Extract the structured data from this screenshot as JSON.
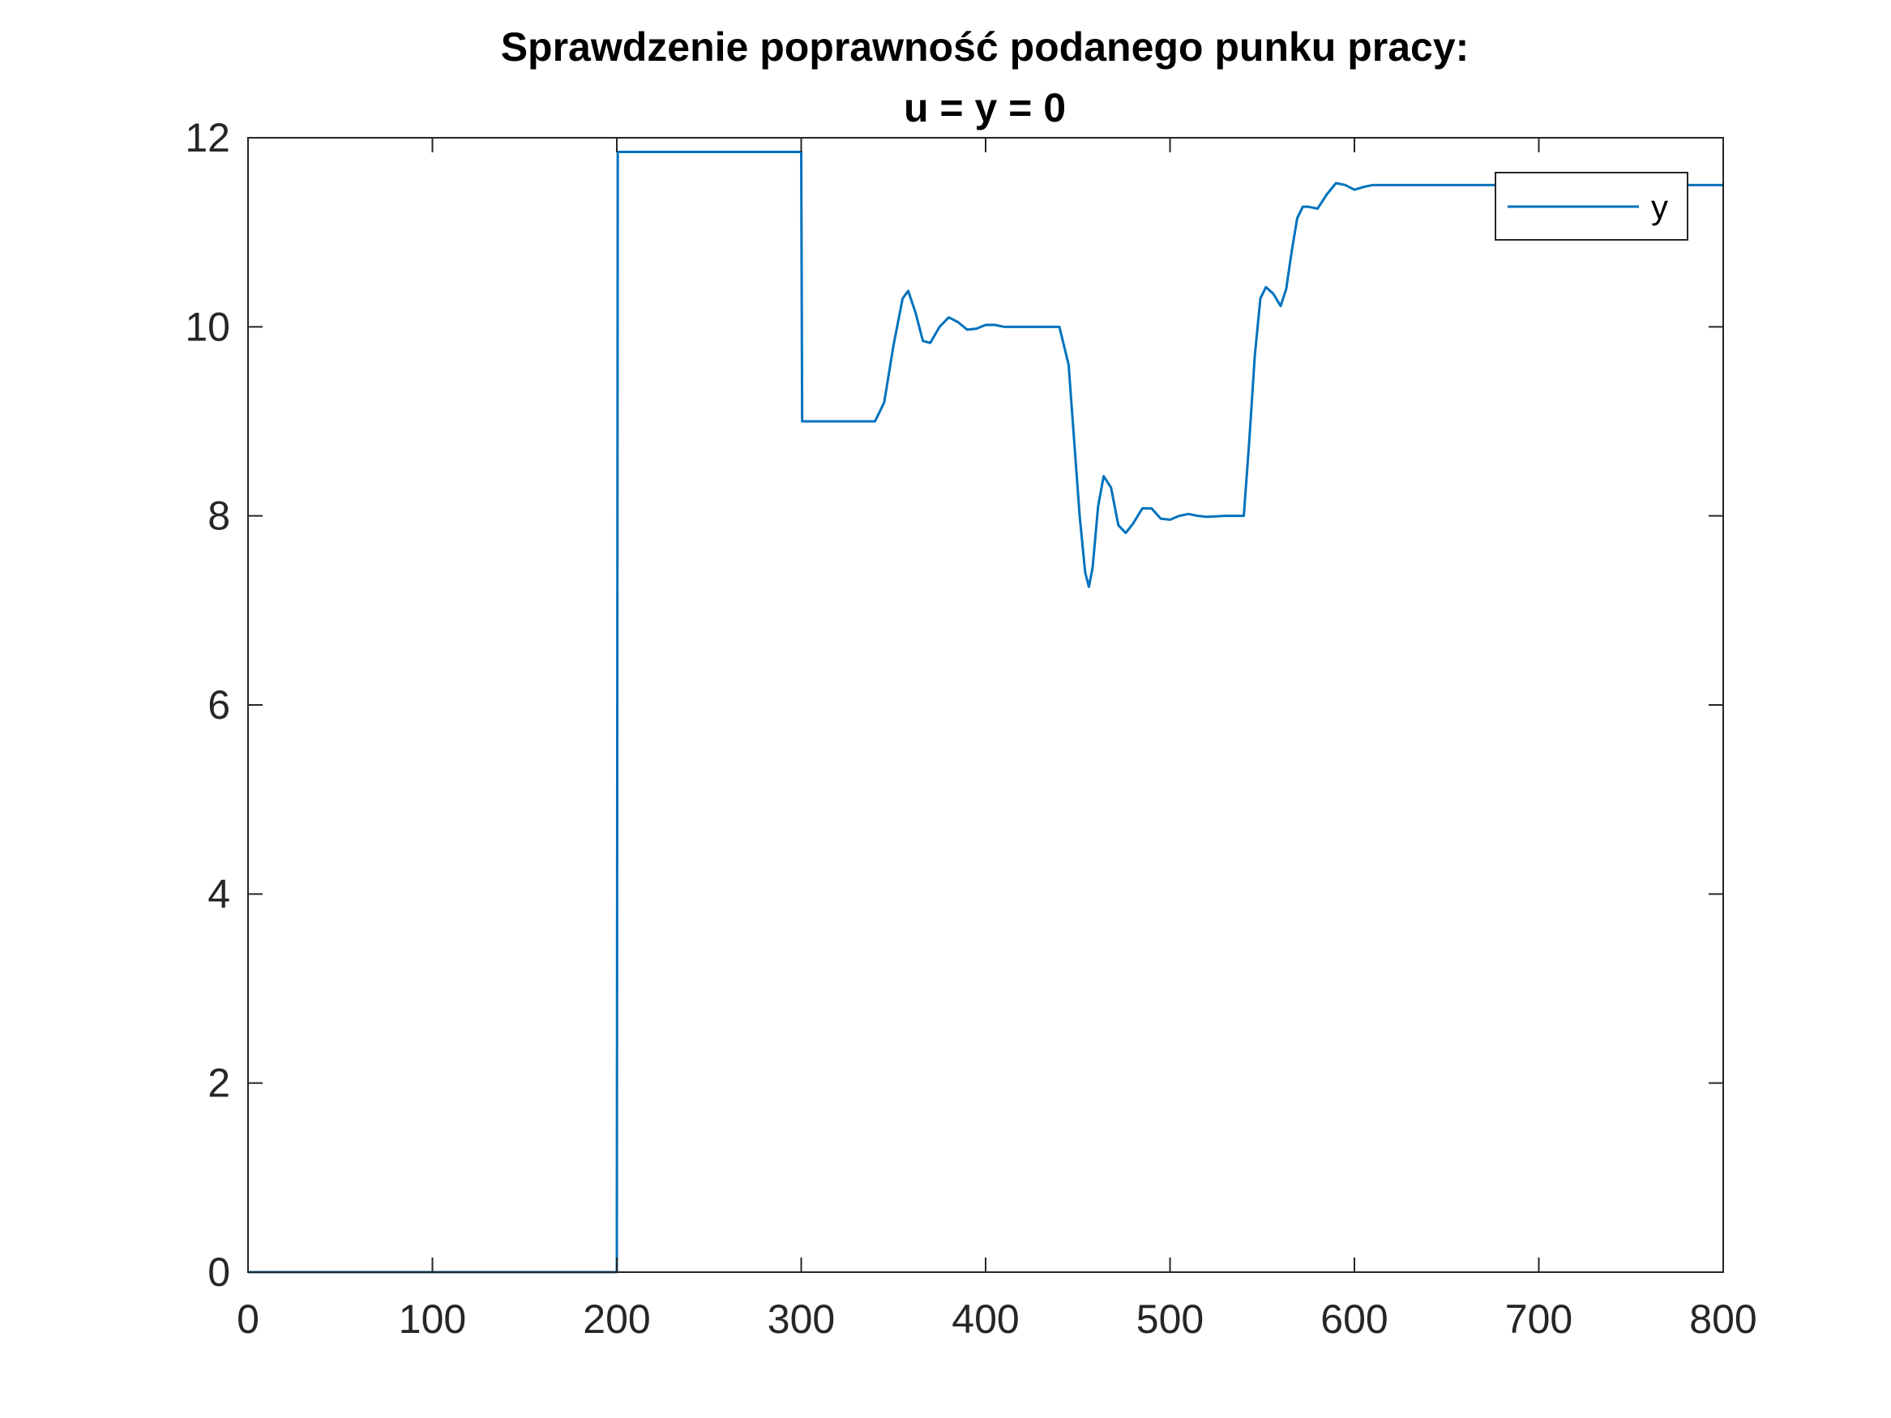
{
  "chart_data": {
    "type": "line",
    "title": [
      "Sprawdzenie poprawność podanego punku pracy:",
      "u = y = 0"
    ],
    "xlabel": "",
    "ylabel": "",
    "xlim": [
      0,
      800
    ],
    "ylim": [
      0,
      12
    ],
    "xticks": [
      0,
      100,
      200,
      300,
      400,
      500,
      600,
      700,
      800
    ],
    "yticks": [
      0,
      2,
      4,
      6,
      8,
      10,
      12
    ],
    "grid": false,
    "legend": {
      "position": "top-right",
      "entries": [
        "y"
      ]
    },
    "colors": {
      "series": "#0072BD",
      "axes": "#262626",
      "background": "#ffffff"
    },
    "series": [
      {
        "name": "y",
        "x": [
          0,
          200,
          200.5,
          201,
          300,
          300.5,
          301,
          310,
          320,
          330,
          340,
          345,
          350,
          355,
          358,
          362,
          366,
          370,
          375,
          380,
          385,
          390,
          395,
          400,
          405,
          410,
          415,
          420,
          425,
          430,
          435,
          440,
          445,
          448,
          451,
          454,
          456,
          458,
          461,
          464,
          468,
          472,
          476,
          480,
          485,
          490,
          495,
          500,
          505,
          510,
          515,
          520,
          530,
          540,
          543,
          546,
          549,
          552,
          556,
          560,
          563,
          566,
          569,
          572,
          575,
          580,
          585,
          590,
          595,
          600,
          605,
          610,
          620,
          630,
          640,
          660,
          680,
          700,
          720,
          740,
          760,
          780,
          800
        ],
        "y": [
          0,
          0,
          11.85,
          11.85,
          11.85,
          9.0,
          9.0,
          9.0,
          9.0,
          9.0,
          9.0,
          9.2,
          9.8,
          10.3,
          10.38,
          10.15,
          9.85,
          9.83,
          10.0,
          10.1,
          10.05,
          9.97,
          9.98,
          10.02,
          10.02,
          10.0,
          10.0,
          10.0,
          10.0,
          10.0,
          10.0,
          10.0,
          9.6,
          8.8,
          8.0,
          7.4,
          7.25,
          7.45,
          8.1,
          8.42,
          8.3,
          7.9,
          7.82,
          7.92,
          8.08,
          8.08,
          7.97,
          7.96,
          8.0,
          8.02,
          8.0,
          7.99,
          8.0,
          8.0,
          8.8,
          9.7,
          10.3,
          10.42,
          10.35,
          10.22,
          10.4,
          10.8,
          11.15,
          11.27,
          11.27,
          11.25,
          11.4,
          11.52,
          11.5,
          11.45,
          11.48,
          11.5,
          11.5,
          11.5,
          11.5,
          11.5,
          11.5,
          11.5,
          11.5,
          11.5,
          11.5,
          11.5,
          11.5
        ]
      }
    ]
  }
}
